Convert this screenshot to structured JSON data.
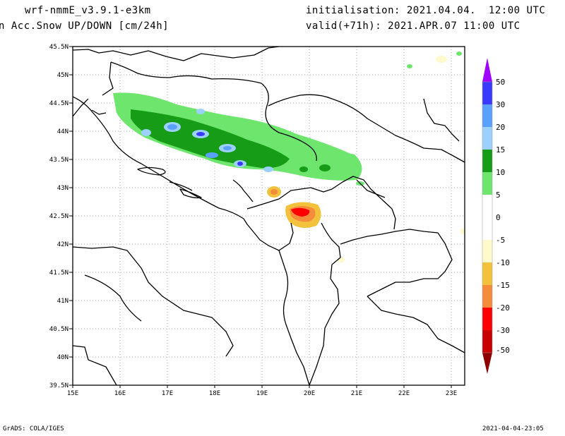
{
  "header": {
    "model": "wrf-nmmE_v3.9.1-e3km",
    "field": "n Acc.Snow UP/DOWN [cm/24h]",
    "init": "initialisation: 2021.04.04.  12:00 UTC",
    "valid": "valid(+71h): 2021.APR.07 11:00 UTC"
  },
  "footer": {
    "credit": "GrADS: COLA/IGES",
    "timestamp": "2021-04-04-23:05"
  },
  "map": {
    "lat_labels": [
      "45.5N",
      "45N",
      "44.5N",
      "44N",
      "43.5N",
      "43N",
      "42.5N",
      "42N",
      "41.5N",
      "41N",
      "40.5N",
      "40N",
      "39.5N"
    ],
    "lon_labels": [
      "15E",
      "16E",
      "17E",
      "18E",
      "19E",
      "20E",
      "21E",
      "22E",
      "23E"
    ]
  },
  "colorbar": {
    "labels": [
      "50",
      "30",
      "20",
      "15",
      "10",
      "5",
      "0",
      "-5",
      "-10",
      "-15",
      "-20",
      "-30",
      "-50"
    ],
    "colors": [
      "#3a3aff",
      "#5aa0ff",
      "#9cd0ff",
      "#169c16",
      "#6ee66e",
      "#ffffff",
      "#ffffff",
      "#fffacc",
      "#f2c23c",
      "#f58c3c",
      "#ff0000",
      "#c80000",
      "#a00000"
    ],
    "top_arrow_color": "#a000ff",
    "bottom_arrow_color": "#8c0000"
  }
}
